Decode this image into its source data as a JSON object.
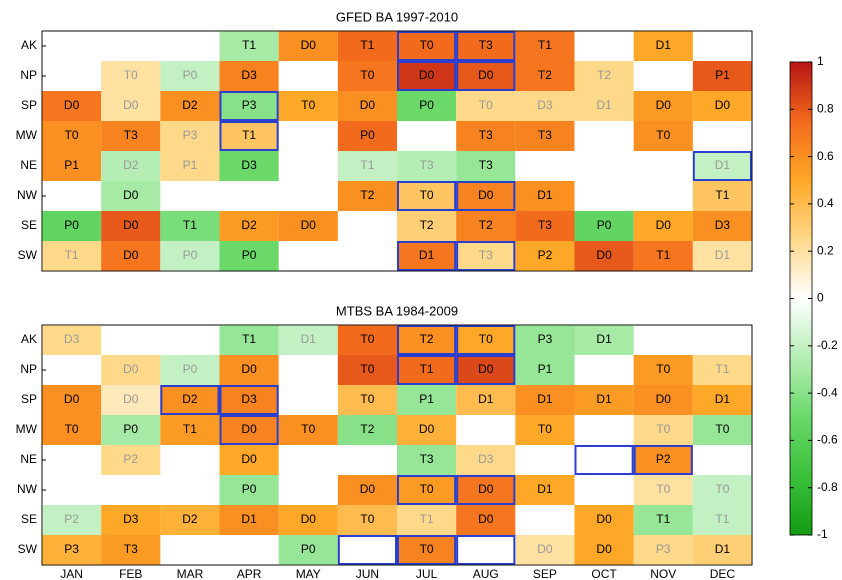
{
  "chart_data": [
    {
      "type": "heatmap",
      "title": "GFED BA 1997-2010",
      "rows": [
        "AK",
        "NP",
        "SP",
        "MW",
        "NE",
        "NW",
        "SE",
        "SW"
      ],
      "values": [
        [
          null,
          null,
          null,
          -0.3,
          0.6,
          0.75,
          0.75,
          0.75,
          0.7,
          null,
          0.5,
          null
        ],
        [
          null,
          0.2,
          -0.2,
          0.65,
          null,
          0.7,
          0.9,
          0.8,
          0.7,
          0.25,
          null,
          0.8
        ],
        [
          0.7,
          0.2,
          0.6,
          -0.4,
          0.5,
          0.6,
          -0.5,
          0.25,
          0.25,
          0.25,
          0.55,
          0.5
        ],
        [
          0.6,
          0.65,
          0.25,
          0.35,
          null,
          0.75,
          null,
          0.65,
          0.65,
          null,
          0.6,
          null
        ],
        [
          0.6,
          -0.25,
          0.25,
          -0.5,
          null,
          -0.2,
          -0.25,
          -0.35,
          null,
          null,
          null,
          -0.2
        ],
        [
          null,
          -0.3,
          null,
          null,
          null,
          0.6,
          0.35,
          0.65,
          0.6,
          null,
          null,
          0.35
        ],
        [
          -0.55,
          0.8,
          -0.45,
          0.55,
          0.6,
          null,
          0.3,
          0.65,
          0.75,
          -0.55,
          0.5,
          0.6
        ],
        [
          0.25,
          0.7,
          -0.2,
          -0.5,
          null,
          null,
          0.7,
          0.25,
          0.5,
          0.8,
          0.7,
          0.2
        ]
      ],
      "cell_labels": [
        [
          null,
          null,
          null,
          "T1",
          "D0",
          "T1",
          "T0",
          "T3",
          "T1",
          null,
          "D1",
          null
        ],
        [
          null,
          "T0",
          "P0",
          "D3",
          null,
          "T0",
          "D0",
          "D0",
          "T2",
          "T2",
          null,
          "P1"
        ],
        [
          "D0",
          "D0",
          "D2",
          "P3",
          "T0",
          "D0",
          "P0",
          "T0",
          "D3",
          "D1",
          "D0",
          "D0"
        ],
        [
          "T0",
          "T3",
          "P3",
          "T1",
          null,
          "P0",
          null,
          "T3",
          "T3",
          null,
          "T0",
          null
        ],
        [
          "P1",
          "D2",
          "P1",
          "D3",
          null,
          "T1",
          "T3",
          "T3",
          null,
          null,
          null,
          "D1"
        ],
        [
          null,
          "D0",
          null,
          null,
          null,
          "T2",
          "T0",
          "D0",
          "D1",
          null,
          null,
          "T1"
        ],
        [
          "P0",
          "D0",
          "T1",
          "D2",
          "D0",
          null,
          "T2",
          "T2",
          "T3",
          "P0",
          "D0",
          "D3"
        ],
        [
          "T1",
          "D0",
          "P0",
          "P0",
          null,
          null,
          "D1",
          "T3",
          "P2",
          "D0",
          "T1",
          "D1"
        ]
      ],
      "boxed": [
        [
          false,
          false,
          false,
          false,
          false,
          false,
          true,
          true,
          false,
          false,
          false,
          false
        ],
        [
          false,
          false,
          false,
          false,
          false,
          false,
          true,
          true,
          false,
          false,
          false,
          false
        ],
        [
          false,
          false,
          false,
          true,
          false,
          false,
          false,
          false,
          false,
          false,
          false,
          false
        ],
        [
          false,
          false,
          false,
          true,
          false,
          false,
          false,
          false,
          false,
          false,
          false,
          false
        ],
        [
          false,
          false,
          false,
          false,
          false,
          false,
          false,
          false,
          false,
          false,
          false,
          true
        ],
        [
          false,
          false,
          false,
          false,
          false,
          false,
          true,
          true,
          false,
          false,
          false,
          false
        ],
        [
          false,
          false,
          false,
          false,
          false,
          false,
          false,
          false,
          false,
          false,
          false,
          false
        ],
        [
          false,
          false,
          false,
          false,
          false,
          false,
          true,
          true,
          false,
          false,
          false,
          false
        ]
      ],
      "box_color": "#2a3fd0"
    },
    {
      "type": "heatmap",
      "title": "MTBS BA 1984-2009",
      "rows": [
        "AK",
        "NP",
        "SP",
        "MW",
        "NE",
        "NW",
        "SE",
        "SW"
      ],
      "categories": [
        "JAN",
        "FEB",
        "MAR",
        "APR",
        "MAY",
        "JUN",
        "JUL",
        "AUG",
        "SEP",
        "OCT",
        "NOV",
        "DEC"
      ],
      "values": [
        [
          0.25,
          null,
          null,
          -0.35,
          -0.2,
          0.75,
          0.6,
          0.5,
          -0.35,
          -0.3,
          null,
          null
        ],
        [
          null,
          0.25,
          -0.2,
          0.6,
          null,
          0.8,
          0.75,
          0.85,
          -0.35,
          null,
          0.55,
          0.25
        ],
        [
          0.6,
          0.15,
          0.6,
          0.65,
          null,
          0.4,
          -0.35,
          0.4,
          0.6,
          0.55,
          0.6,
          0.5
        ],
        [
          0.6,
          -0.3,
          0.55,
          0.65,
          0.6,
          -0.4,
          0.45,
          null,
          0.5,
          null,
          0.25,
          -0.35
        ],
        [
          null,
          0.25,
          null,
          0.5,
          null,
          null,
          -0.35,
          0.25,
          null,
          null,
          0.6,
          null
        ],
        [
          null,
          null,
          null,
          -0.35,
          null,
          0.6,
          0.55,
          0.7,
          0.5,
          null,
          0.2,
          -0.2
        ],
        [
          -0.2,
          0.5,
          0.45,
          0.6,
          0.5,
          0.4,
          0.25,
          0.7,
          null,
          0.5,
          -0.35,
          -0.2
        ],
        [
          0.45,
          0.55,
          null,
          null,
          -0.35,
          null,
          0.65,
          null,
          0.2,
          0.5,
          0.25,
          0.3
        ]
      ],
      "cell_labels": [
        [
          "D3",
          null,
          null,
          "T1",
          "D1",
          "T0",
          "T2",
          "T0",
          "P3",
          "D1",
          null,
          null
        ],
        [
          null,
          "D0",
          "P0",
          "D0",
          null,
          "T0",
          "T1",
          "D0",
          "P1",
          null,
          "T0",
          "T1"
        ],
        [
          "D0",
          "D0",
          "D2",
          "D3",
          null,
          "T0",
          "P1",
          "D1",
          "D1",
          "D1",
          "D0",
          "D1"
        ],
        [
          "T0",
          "P0",
          "T1",
          "D0",
          "T0",
          "T2",
          "D0",
          null,
          "T0",
          null,
          "T0",
          "T0"
        ],
        [
          null,
          "P2",
          null,
          "D0",
          null,
          null,
          "T3",
          "D3",
          null,
          null,
          "P2",
          null
        ],
        [
          null,
          null,
          null,
          "P0",
          null,
          "D0",
          "T0",
          "D0",
          "D1",
          null,
          "T0",
          "T0"
        ],
        [
          "P2",
          "D3",
          "D2",
          "D1",
          "D0",
          "T0",
          "T1",
          "D0",
          null,
          "D0",
          "T1",
          "T1"
        ],
        [
          "P3",
          "T3",
          null,
          null,
          "P0",
          null,
          "T0",
          null,
          "D0",
          "D0",
          "P3",
          "D1"
        ]
      ],
      "boxed": [
        [
          false,
          false,
          false,
          false,
          false,
          false,
          true,
          true,
          false,
          false,
          false,
          false
        ],
        [
          false,
          false,
          false,
          false,
          false,
          false,
          true,
          true,
          false,
          false,
          false,
          false
        ],
        [
          false,
          false,
          true,
          true,
          false,
          false,
          false,
          false,
          false,
          false,
          false,
          false
        ],
        [
          false,
          false,
          false,
          true,
          false,
          false,
          false,
          false,
          false,
          false,
          false,
          false
        ],
        [
          false,
          false,
          false,
          false,
          false,
          false,
          false,
          false,
          false,
          true,
          true,
          false
        ],
        [
          false,
          false,
          false,
          false,
          false,
          false,
          true,
          true,
          false,
          false,
          false,
          false
        ],
        [
          false,
          false,
          false,
          false,
          false,
          false,
          false,
          false,
          false,
          false,
          false,
          false
        ],
        [
          false,
          false,
          false,
          false,
          false,
          true,
          true,
          true,
          false,
          false,
          false,
          false
        ]
      ],
      "box_color": "#2a3fd0"
    },
    {
      "type": "colorbar",
      "zlim": [
        -1,
        1
      ],
      "zticks": [
        -1,
        -0.8,
        -0.6,
        -0.4,
        -0.2,
        0,
        0.2,
        0.4,
        0.6,
        0.8,
        1
      ],
      "colormap": [
        "#139b13",
        "#3cc13c",
        "#6ad96a",
        "#b5eeb5",
        "#ffffff",
        "#ffd98a",
        "#ffa726",
        "#f26a1c",
        "#b81414"
      ]
    }
  ]
}
